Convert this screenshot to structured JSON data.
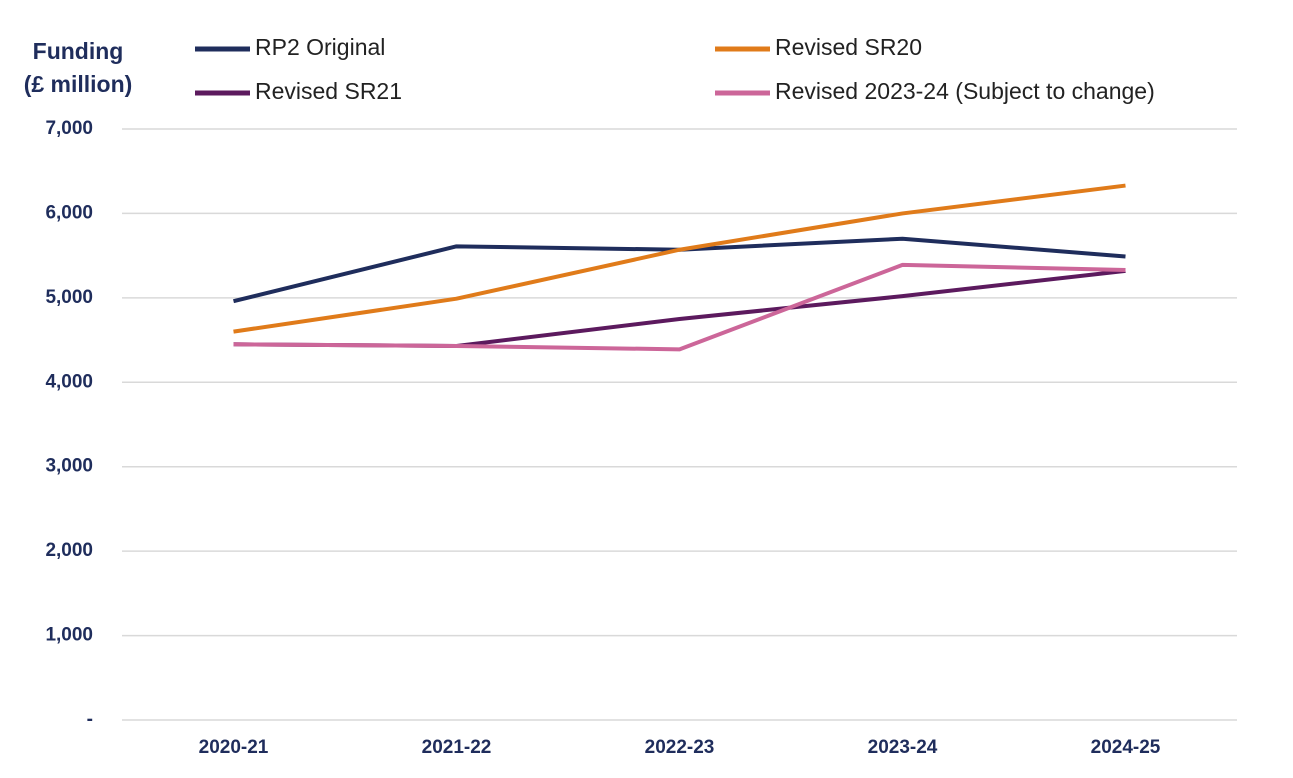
{
  "chart_data": {
    "type": "line",
    "y_label": [
      "Funding",
      "(£ million)"
    ],
    "categories": [
      "2020-21",
      "2021-22",
      "2022-23",
      "2023-24",
      "2024-25"
    ],
    "series": [
      {
        "name": "RP2 Original",
        "color": "#1f2d5c",
        "values": [
          4960,
          5610,
          5570,
          5700,
          5490
        ]
      },
      {
        "name": "Revised SR20",
        "color": "#e07b1a",
        "values": [
          4600,
          4990,
          5570,
          6000,
          6330
        ]
      },
      {
        "name": "Revised SR21",
        "color": "#5c1a5e",
        "values": [
          4450,
          4430,
          4750,
          5020,
          5320
        ]
      },
      {
        "name": "Revised 2023-24 (Subject to change)",
        "color": "#cc6699",
        "values": [
          4450,
          4430,
          4390,
          5390,
          5330
        ]
      }
    ],
    "ylim": [
      0,
      7000
    ],
    "yticks": [
      {
        "value": 0,
        "label": "-"
      },
      {
        "value": 1000,
        "label": "1,000"
      },
      {
        "value": 2000,
        "label": "2,000"
      },
      {
        "value": 3000,
        "label": "3,000"
      },
      {
        "value": 4000,
        "label": "4,000"
      },
      {
        "value": 5000,
        "label": "5,000"
      },
      {
        "value": 6000,
        "label": "6,000"
      },
      {
        "value": 7000,
        "label": "7,000"
      }
    ],
    "grid": true,
    "legend": "top"
  }
}
